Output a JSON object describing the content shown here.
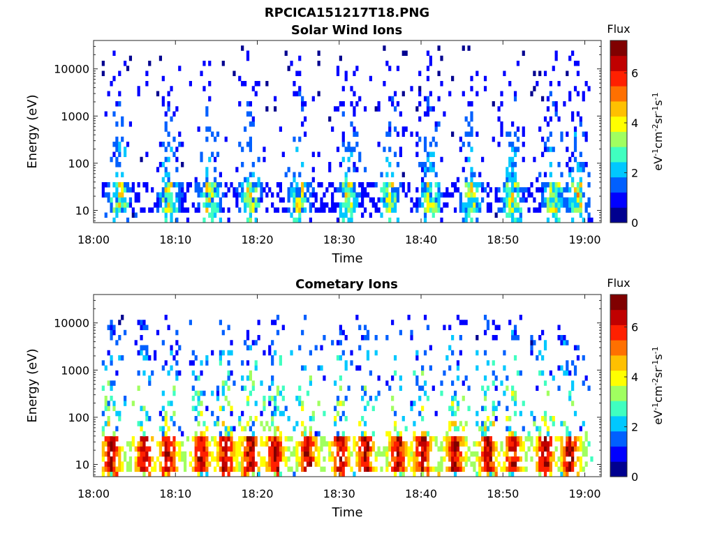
{
  "figure": {
    "filename_title": "RPCICA151217T18.PNG"
  },
  "colormap": [
    "#00008f",
    "#0000ff",
    "#0060ff",
    "#00c8ff",
    "#40ffc0",
    "#a0ff60",
    "#ffff00",
    "#ffc000",
    "#ff7000",
    "#ff2000",
    "#c00000",
    "#800000"
  ],
  "chart_data": [
    {
      "type": "heatmap",
      "title": "Solar Wind Ions",
      "xlabel": "Time",
      "ylabel": "Energy (eV)",
      "yscale": "log",
      "xlim": [
        "18:00",
        "19:02"
      ],
      "ylim": [
        5.5,
        40000
      ],
      "xticks": [
        "18:00",
        "18:10",
        "18:20",
        "18:30",
        "18:40",
        "18:50",
        "19:00"
      ],
      "yticks": [
        10,
        100,
        1000,
        10000
      ],
      "ytick_labels": [
        "10",
        "100",
        "1000",
        "10000"
      ],
      "colorbar": {
        "label": "Flux",
        "units_base": "eV",
        "units_parts": [
          [
            "-1",
            "cm"
          ],
          [
            "-2",
            "sr"
          ],
          [
            "-1",
            "s"
          ],
          [
            "-1",
            ""
          ]
        ],
        "range": [
          0,
          7.3
        ],
        "ticks": [
          0,
          2,
          4,
          6
        ],
        "tick_labels": [
          "0",
          "2",
          "4",
          "6"
        ]
      },
      "data_start": "18:01",
      "data_end": "19:01",
      "burst_times_min": [
        3,
        9,
        14,
        19,
        25,
        31,
        36,
        41,
        46,
        51,
        56,
        59
      ],
      "core_energy_ev": [
        8,
        40
      ],
      "core_flux_max": 4.8,
      "typical_flux": 1.5,
      "sparse_counts_energy_max_ev": 35000
    },
    {
      "type": "heatmap",
      "title": "Cometary Ions",
      "xlabel": "Time",
      "ylabel": "Energy (eV)",
      "yscale": "log",
      "xlim": [
        "18:00",
        "19:02"
      ],
      "ylim": [
        5.5,
        40000
      ],
      "xticks": [
        "18:00",
        "18:10",
        "18:20",
        "18:30",
        "18:40",
        "18:50",
        "19:00"
      ],
      "yticks": [
        10,
        100,
        1000,
        10000
      ],
      "ytick_labels": [
        "10",
        "100",
        "1000",
        "10000"
      ],
      "colorbar": {
        "label": "Flux",
        "units_base": "eV",
        "units_parts": [
          [
            "-1",
            "cm"
          ],
          [
            "-2",
            "sr"
          ],
          [
            "-1",
            "s"
          ],
          [
            "-1",
            ""
          ]
        ],
        "range": [
          0,
          7.3
        ],
        "ticks": [
          0,
          2,
          4,
          6
        ],
        "tick_labels": [
          "0",
          "2",
          "4",
          "6"
        ]
      },
      "data_start": "18:01",
      "data_end": "19:01",
      "burst_times_min": [
        2,
        6,
        9,
        13,
        16,
        19,
        22,
        26,
        30,
        33,
        37,
        40,
        44,
        48,
        51,
        55,
        58
      ],
      "core_energy_ev": [
        7,
        40
      ],
      "core_flux_max": 6.8,
      "typical_flux": 5.0,
      "sparse_counts_energy_max_ev": 16000
    }
  ]
}
